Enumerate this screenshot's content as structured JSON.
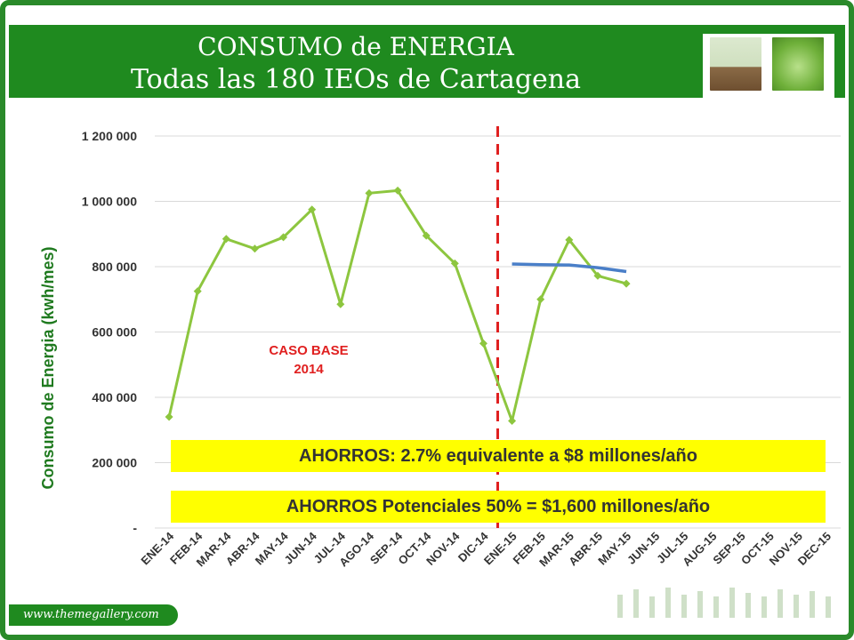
{
  "header": {
    "title_line1": "CONSUMO de ENERGIA",
    "title_line2": "Todas las 180 IEOs de Cartagena"
  },
  "footer": {
    "url": "www.themegallery.com"
  },
  "colors": {
    "brand_green": "#1f8a1f",
    "series_green": "#8dc63f",
    "trend_blue": "#4a7fc8",
    "divider_red": "#e02020",
    "highlight_yellow": "#ffff00"
  },
  "chart_data": {
    "type": "line",
    "ylabel": "Consumo de Energia (kwh/mes)",
    "ylim": [
      0,
      1200000
    ],
    "yticks": [
      0,
      200000,
      400000,
      600000,
      800000,
      1000000,
      1200000
    ],
    "ytick_labels": [
      "-",
      "200 000",
      "400 000",
      "600 000",
      "800 000",
      "1 000 000",
      "1 200 000"
    ],
    "grid": true,
    "categories": [
      "ENE-14",
      "FEB-14",
      "MAR-14",
      "ABR-14",
      "MAY-14",
      "JUN-14",
      "JUL-14",
      "AGO-14",
      "SEP-14",
      "OCT-14",
      "NOV-14",
      "DIC-14",
      "ENE-15",
      "FEB-15",
      "MAR-15",
      "ABR-15",
      "MAY-15",
      "JUN-15",
      "JUL-15",
      "AUG-15",
      "SEP-15",
      "OCT-15",
      "NOV-15",
      "DEC-15"
    ],
    "series": [
      {
        "values": [
          340000,
          725000,
          885000,
          855000,
          890000,
          975000,
          685000,
          1025000,
          1033000,
          895000,
          810000,
          565000,
          328000,
          700000,
          882000,
          772000,
          748000,
          null,
          null,
          null,
          null,
          null,
          null,
          null
        ]
      },
      {
        "values": [
          null,
          null,
          null,
          null,
          null,
          null,
          null,
          null,
          null,
          null,
          null,
          null,
          808000,
          806000,
          805000,
          797000,
          785000,
          null,
          null,
          null,
          null,
          null,
          null,
          null
        ]
      }
    ],
    "divider_after_category": "DIC-14",
    "annotations": {
      "caso_base_line1": "CASO BASE",
      "caso_base_line2": "2014",
      "ahorros": "AHORROS: 2.7%  equivalente a $8 millones/año",
      "ahorros_potenciales": "AHORROS Potenciales  50%  = $1,600 millones/año"
    }
  }
}
